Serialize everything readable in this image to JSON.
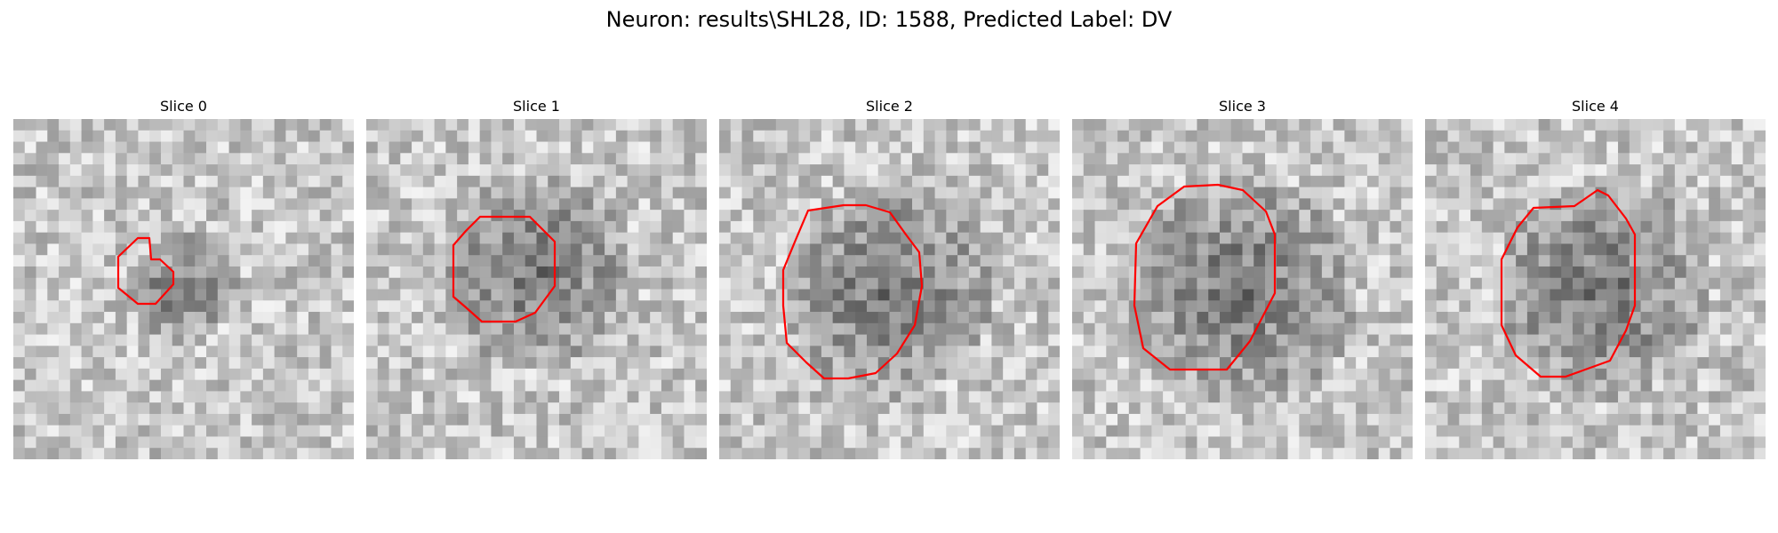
{
  "figure": {
    "title": "Neuron: results\\SHL28, ID: 1588, Predicted Label: DV"
  },
  "panels": [
    {
      "title": "Slice 0",
      "seed": 11
    },
    {
      "title": "Slice 1",
      "seed": 23
    },
    {
      "title": "Slice 2",
      "seed": 37
    },
    {
      "title": "Slice 3",
      "seed": 53
    },
    {
      "title": "Slice 4",
      "seed": 71
    }
  ],
  "image": {
    "grid": 30,
    "colormap": "gray",
    "contour_color": "#ff0000"
  }
}
